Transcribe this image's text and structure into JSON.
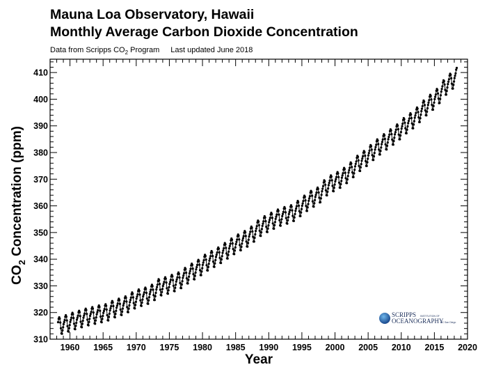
{
  "chart_data": {
    "type": "line",
    "title": "Mauna Loa Observatory, Hawaii",
    "subtitle": "Monthly Average Carbon Dioxide Concentration",
    "source_note": {
      "prefix": "Data from Scripps CO",
      "subscript": "2",
      "suffix": " Program",
      "updated": "Last updated June 2018"
    },
    "xlabel": "Year",
    "ylabel": {
      "prefix": "CO",
      "subscript": "2",
      "suffix": " Concentration (ppm)"
    },
    "xlim": [
      1957,
      2020
    ],
    "ylim": [
      310,
      415
    ],
    "xticks": [
      1960,
      1965,
      1970,
      1975,
      1980,
      1985,
      1990,
      1995,
      2000,
      2005,
      2010,
      2015,
      2020
    ],
    "yticks": [
      310,
      320,
      330,
      340,
      350,
      360,
      370,
      380,
      390,
      400,
      410
    ],
    "grid": false,
    "marker": "filled-circle",
    "color": "#000000",
    "series_start": "1958-03",
    "series_end": "2018-05",
    "annual_mean_ppm": {
      "1958": 315.2,
      "1959": 315.98,
      "1960": 316.91,
      "1961": 317.64,
      "1962": 318.45,
      "1963": 318.99,
      "1964": 319.62,
      "1965": 320.04,
      "1966": 321.37,
      "1967": 322.18,
      "1968": 323.05,
      "1969": 324.62,
      "1970": 325.68,
      "1971": 326.32,
      "1972": 327.45,
      "1973": 329.68,
      "1974": 330.19,
      "1975": 331.12,
      "1976": 332.03,
      "1977": 333.84,
      "1978": 335.41,
      "1979": 336.84,
      "1980": 338.76,
      "1981": 340.12,
      "1982": 341.48,
      "1983": 343.15,
      "1984": 344.85,
      "1985": 346.35,
      "1986": 347.61,
      "1987": 349.31,
      "1988": 351.69,
      "1989": 353.2,
      "1990": 354.45,
      "1991": 355.7,
      "1992": 356.54,
      "1993": 357.21,
      "1994": 358.96,
      "1995": 360.97,
      "1996": 362.74,
      "1997": 363.88,
      "1998": 366.84,
      "1999": 368.54,
      "2000": 369.71,
      "2001": 371.32,
      "2002": 373.45,
      "2003": 375.98,
      "2004": 377.7,
      "2005": 379.98,
      "2006": 382.09,
      "2007": 384.02,
      "2008": 385.83,
      "2009": 387.64,
      "2010": 390.1,
      "2011": 391.85,
      "2012": 394.06,
      "2013": 396.74,
      "2014": 398.81,
      "2015": 401.01,
      "2016": 404.41,
      "2017": 406.76,
      "2018": 408.9
    },
    "seasonal_cycle_ppm": [
      0.0,
      0.7,
      1.4,
      2.6,
      3.1,
      2.5,
      1.0,
      -1.2,
      -3.2,
      -3.4,
      -2.2,
      -1.1
    ]
  },
  "logo": {
    "line1": "SCRIPPS",
    "line1_small": "INSTITUTION OF",
    "line2": "OCEANOGRAPHY",
    "line2_small": "UC San Diego",
    "color": "#1e5fa8"
  }
}
